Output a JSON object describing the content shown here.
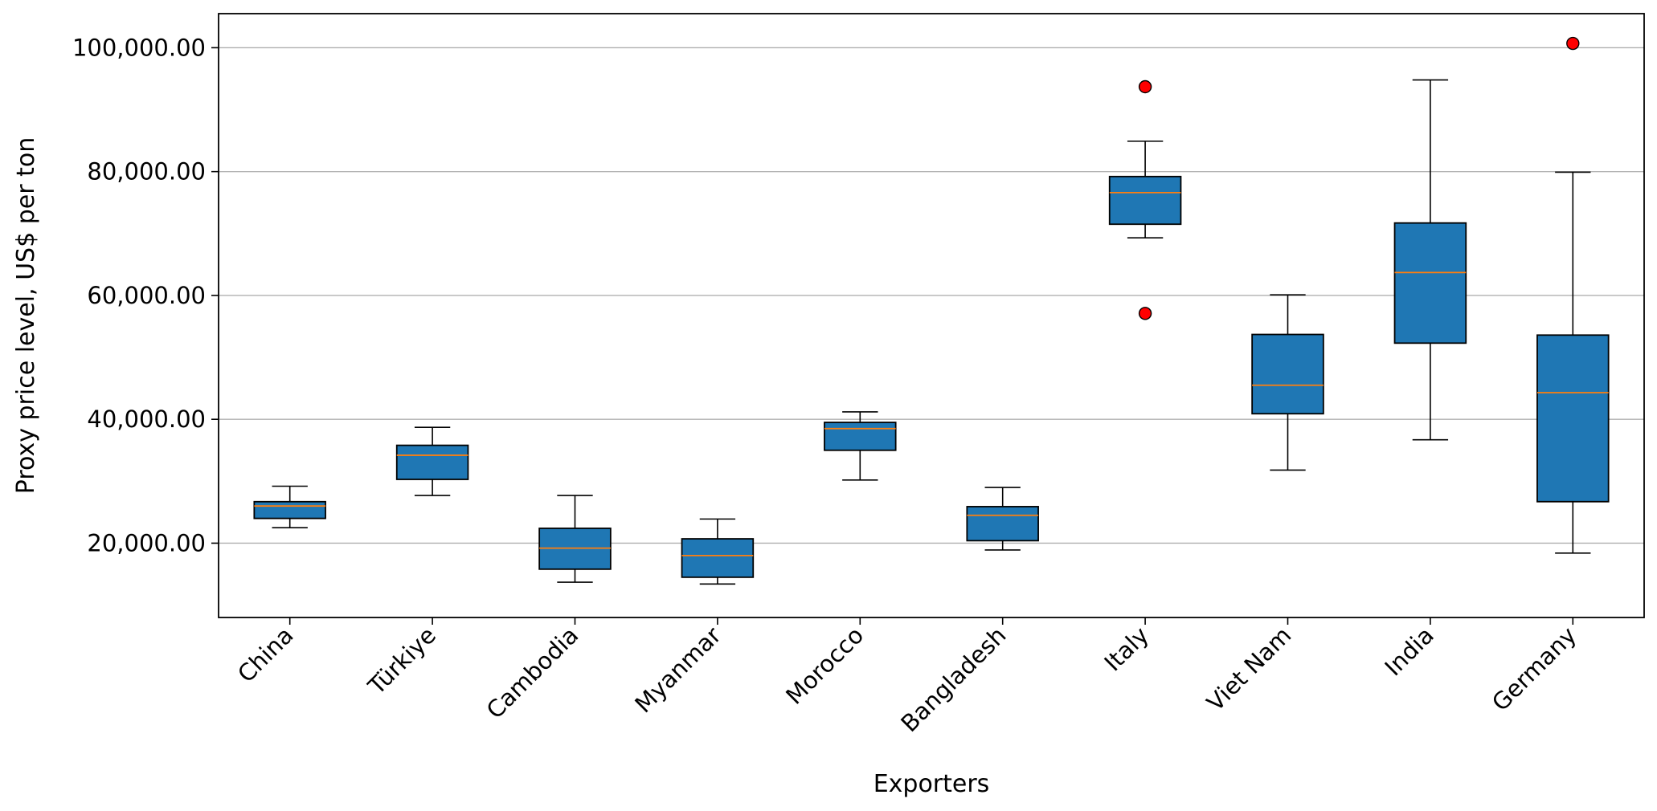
{
  "chart_data": {
    "type": "boxplot",
    "title": "",
    "xlabel": "Exporters",
    "ylabel": "Proxy price level, US$ per ton",
    "ylim": [
      8000,
      105500
    ],
    "yticks": [
      20000,
      40000,
      60000,
      80000,
      100000
    ],
    "ytick_labels": [
      "20,000.00",
      "40,000.00",
      "60,000.00",
      "80,000.00",
      "100,000.00"
    ],
    "grid": "horizontal",
    "colors": {
      "box": "#1f77b4",
      "median": "#ff7f0e",
      "outlier": "#ff0000",
      "grid": "#b0b0b0"
    },
    "categories": [
      "China",
      "Türkiye",
      "Cambodia",
      "Myanmar",
      "Morocco",
      "Bangladesh",
      "Italy",
      "Viet Nam",
      "India",
      "Germany"
    ],
    "boxes": [
      {
        "label": "China",
        "whislo": 22500,
        "q1": 24000,
        "med": 26000,
        "q3": 26700,
        "whishi": 29200,
        "fliers": []
      },
      {
        "label": "Türkiye",
        "whislo": 27700,
        "q1": 30300,
        "med": 34200,
        "q3": 35800,
        "whishi": 38700,
        "fliers": []
      },
      {
        "label": "Cambodia",
        "whislo": 13700,
        "q1": 15800,
        "med": 19200,
        "q3": 22400,
        "whishi": 27700,
        "fliers": []
      },
      {
        "label": "Myanmar",
        "whislo": 13400,
        "q1": 14500,
        "med": 18000,
        "q3": 20700,
        "whishi": 23900,
        "fliers": []
      },
      {
        "label": "Morocco",
        "whislo": 30200,
        "q1": 35000,
        "med": 38500,
        "q3": 39500,
        "whishi": 41200,
        "fliers": []
      },
      {
        "label": "Bangladesh",
        "whislo": 18900,
        "q1": 20400,
        "med": 24500,
        "q3": 25900,
        "whishi": 29000,
        "fliers": []
      },
      {
        "label": "Italy",
        "whislo": 69300,
        "q1": 71500,
        "med": 76600,
        "q3": 79200,
        "whishi": 84900,
        "fliers": [
          93700,
          57100
        ]
      },
      {
        "label": "Viet Nam",
        "whislo": 31800,
        "q1": 40900,
        "med": 45500,
        "q3": 53700,
        "whishi": 60100,
        "fliers": []
      },
      {
        "label": "India",
        "whislo": 36700,
        "q1": 52300,
        "med": 63700,
        "q3": 71700,
        "whishi": 94800,
        "fliers": []
      },
      {
        "label": "Germany",
        "whislo": 18400,
        "q1": 26700,
        "med": 44300,
        "q3": 53600,
        "whishi": 79900,
        "fliers": [
          100700
        ]
      }
    ]
  }
}
